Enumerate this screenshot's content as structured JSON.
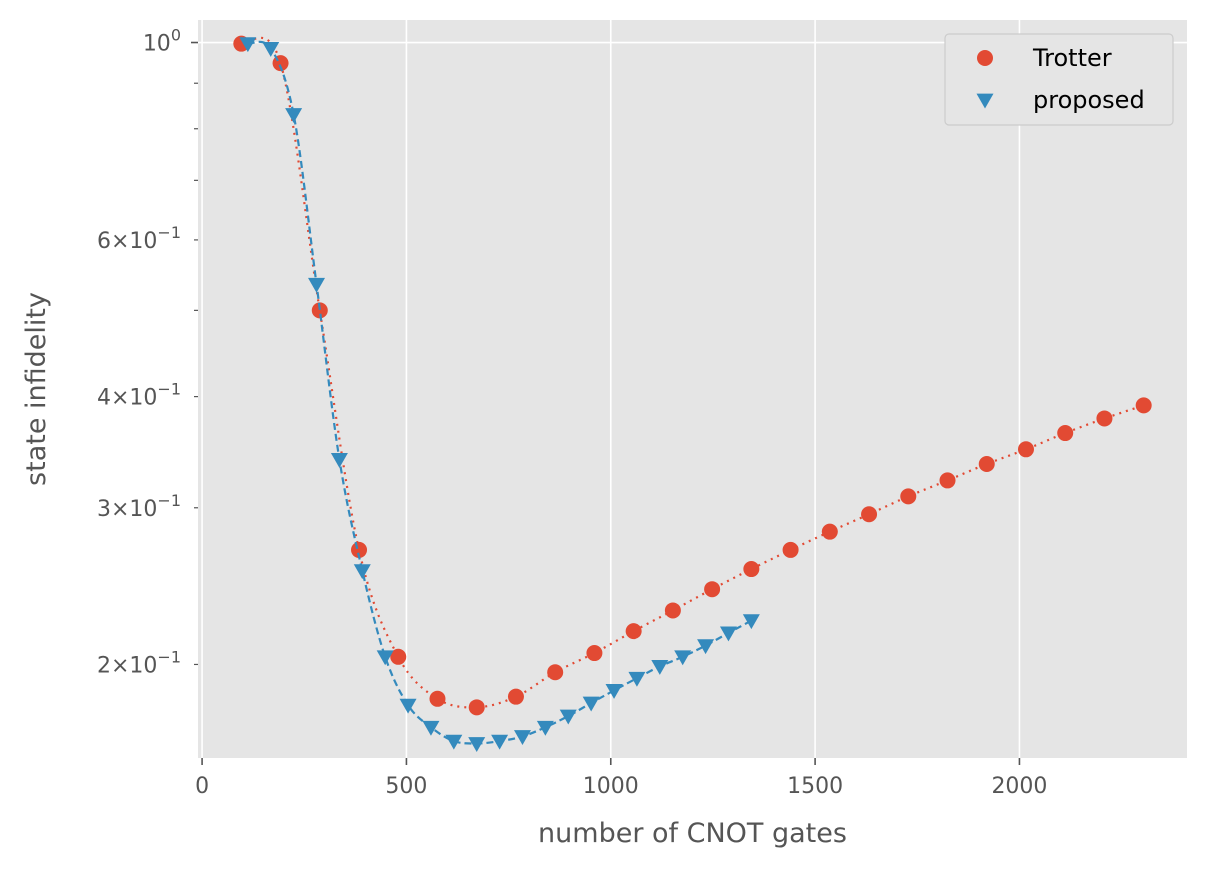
{
  "chart_data": {
    "type": "scatter",
    "xlabel": "number of CNOT gates",
    "ylabel": "state infidelity",
    "xlim": [
      -10,
      2410
    ],
    "ylim": [
      0.157,
      1.06
    ],
    "yscale": "log",
    "grid": true,
    "legend_position": "top-right",
    "x_ticks": [
      {
        "value": 0,
        "label": "0"
      },
      {
        "value": 500,
        "label": "500"
      },
      {
        "value": 1000,
        "label": "1000"
      },
      {
        "value": 1500,
        "label": "1500"
      },
      {
        "value": 2000,
        "label": "2000"
      }
    ],
    "y_major_ticks": [
      {
        "value": 1.0,
        "base": "10",
        "exp": "0"
      }
    ],
    "y_minor_ticks": [
      {
        "value": 0.2,
        "mant": "2",
        "base": "10",
        "exp": "−1"
      },
      {
        "value": 0.3,
        "mant": "3",
        "base": "10",
        "exp": "−1"
      },
      {
        "value": 0.4,
        "mant": "4",
        "base": "10",
        "exp": "−1"
      },
      {
        "value": 0.6,
        "mant": "6",
        "base": "10",
        "exp": "−1"
      }
    ],
    "y_unlabeled_minor_ticks": [
      0.5,
      0.7,
      0.8,
      0.9
    ],
    "series": [
      {
        "name": "Trotter",
        "marker": "circle",
        "line": "dotted",
        "color": "#E24A33",
        "x": [
          96,
          192,
          288,
          384,
          480,
          576,
          672,
          768,
          864,
          960,
          1056,
          1152,
          1248,
          1344,
          1440,
          1536,
          1632,
          1728,
          1824,
          1920,
          2016,
          2112,
          2208,
          2304
        ],
        "y": [
          0.997,
          0.948,
          0.5,
          0.269,
          0.204,
          0.183,
          0.179,
          0.184,
          0.196,
          0.206,
          0.218,
          0.23,
          0.243,
          0.256,
          0.269,
          0.282,
          0.295,
          0.309,
          0.322,
          0.336,
          0.349,
          0.364,
          0.378,
          0.391
        ]
      },
      {
        "name": "proposed",
        "marker": "triangle-down",
        "line": "dashed",
        "color": "#348ABD",
        "x": [
          112,
          168,
          224,
          280,
          336,
          392,
          448,
          504,
          560,
          616,
          672,
          728,
          784,
          840,
          896,
          952,
          1008,
          1064,
          1120,
          1176,
          1232,
          1288,
          1344
        ],
        "y": [
          0.997,
          0.985,
          0.83,
          0.535,
          0.34,
          0.255,
          0.204,
          0.18,
          0.17,
          0.164,
          0.163,
          0.164,
          0.166,
          0.17,
          0.175,
          0.181,
          0.187,
          0.193,
          0.199,
          0.204,
          0.21,
          0.217,
          0.224
        ]
      }
    ]
  }
}
